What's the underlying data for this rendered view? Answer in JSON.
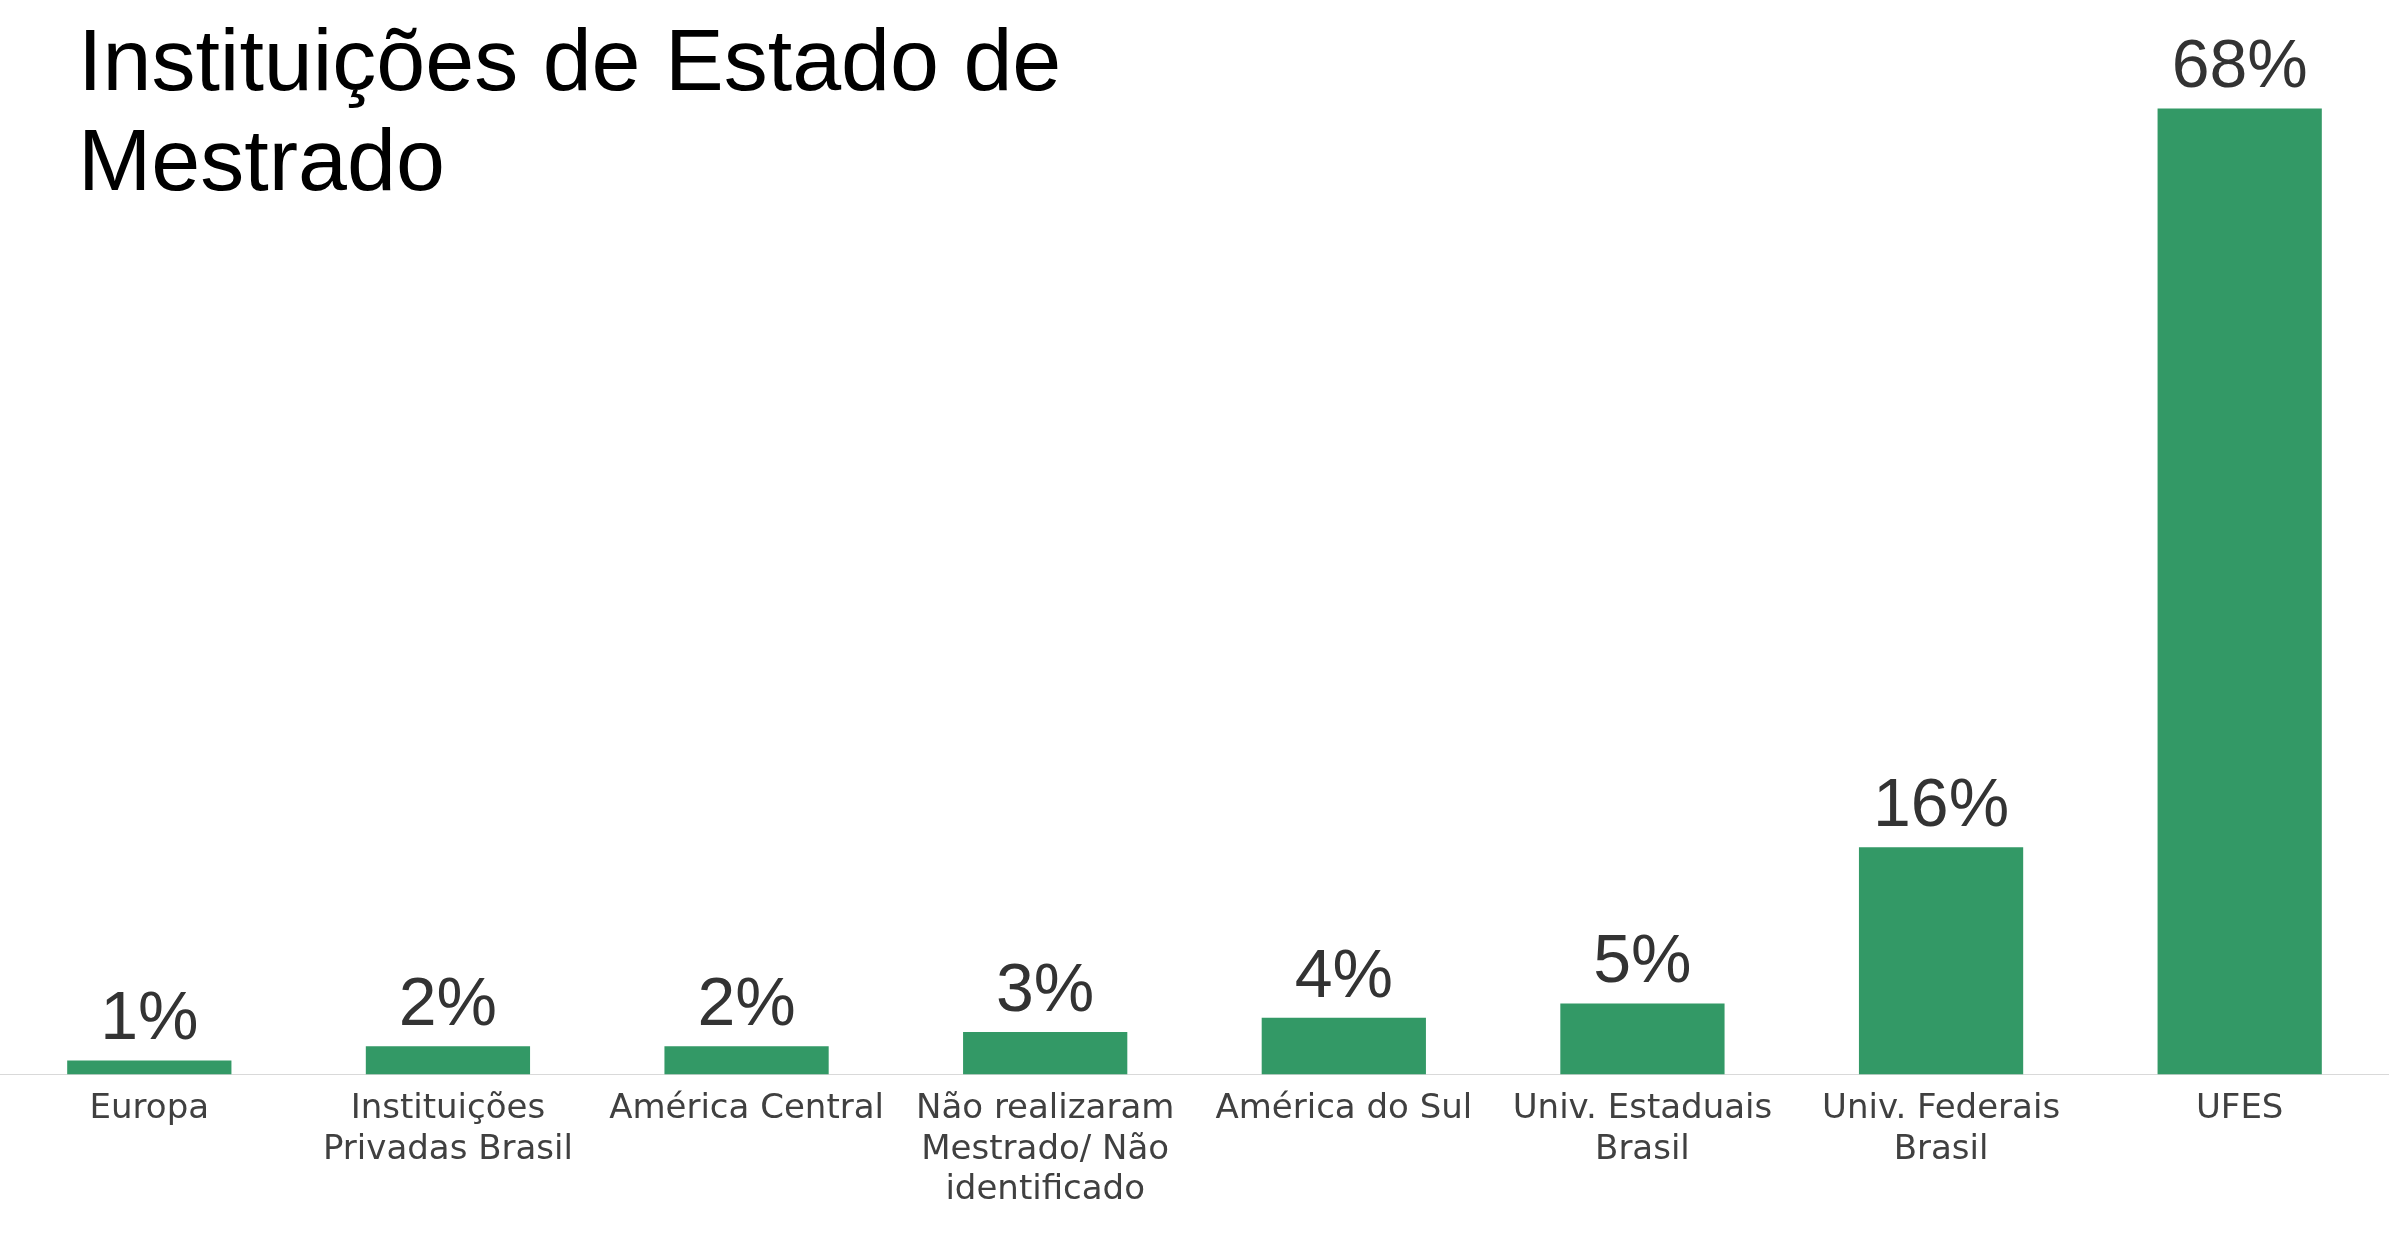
{
  "chart_data": {
    "type": "bar",
    "title": "Instituições de Estado de Mestrado",
    "categories": [
      "Europa",
      "Instituições Privadas Brasil",
      "América Central",
      "Não realizaram Mestrado/ Não identificado",
      "América do Sul",
      "Univ. Estaduais Brasil",
      "Univ. Federais Brasil",
      "UFES"
    ],
    "values": [
      1,
      2,
      2,
      3,
      4,
      5,
      16,
      68
    ],
    "value_labels": [
      "1%",
      "2%",
      "2%",
      "3%",
      "4%",
      "5%",
      "16%",
      "68%"
    ],
    "color": "#339966",
    "grid": false,
    "legend": false
  }
}
